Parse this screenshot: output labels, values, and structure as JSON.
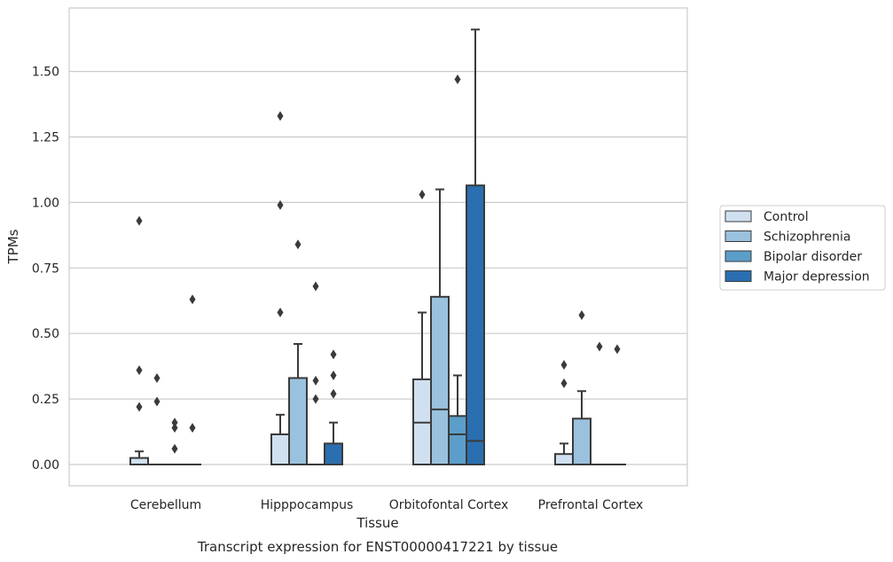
{
  "chart_data": {
    "type": "box",
    "caption": "Transcript expression for ENST00000417221 by tissue",
    "xlabel": "Tissue",
    "ylabel": "TPMs",
    "ylim": [
      -0.08,
      1.75
    ],
    "yticks": [
      0.0,
      0.25,
      0.5,
      0.75,
      1.0,
      1.25,
      1.5
    ],
    "ytick_labels": [
      "0.00",
      "0.25",
      "0.50",
      "0.75",
      "1.00",
      "1.25",
      "1.50"
    ],
    "grid": "horizontal",
    "legend_position": "right",
    "categories": [
      "Cerebellum",
      "Hipppocampus",
      "Orbitofontal Cortex",
      "Prefrontal Cortex"
    ],
    "series": [
      {
        "name": "Control",
        "color": "#d0e0f0",
        "boxes": [
          {
            "q1": 0.0,
            "median": 0.0,
            "q3": 0.025,
            "whisker_low": 0.0,
            "whisker_high": 0.05,
            "outliers": [
              0.93,
              0.36,
              0.22
            ]
          },
          {
            "q1": 0.0,
            "median": 0.0,
            "q3": 0.115,
            "whisker_low": 0.0,
            "whisker_high": 0.19,
            "outliers": [
              1.33,
              0.99,
              0.58
            ]
          },
          {
            "q1": 0.0,
            "median": 0.16,
            "q3": 0.325,
            "whisker_low": 0.0,
            "whisker_high": 0.58,
            "outliers": [
              1.03
            ]
          },
          {
            "q1": 0.0,
            "median": 0.0,
            "q3": 0.04,
            "whisker_low": 0.0,
            "whisker_high": 0.08,
            "outliers": [
              0.38,
              0.31
            ]
          }
        ]
      },
      {
        "name": "Schizophrenia",
        "color": "#9ac1dd",
        "boxes": [
          {
            "q1": 0.0,
            "median": 0.0,
            "q3": 0.0,
            "whisker_low": 0.0,
            "whisker_high": 0.0,
            "outliers": [
              0.33,
              0.24
            ]
          },
          {
            "q1": 0.0,
            "median": 0.0,
            "q3": 0.33,
            "whisker_low": 0.0,
            "whisker_high": 0.46,
            "outliers": [
              0.84
            ]
          },
          {
            "q1": 0.0,
            "median": 0.21,
            "q3": 0.64,
            "whisker_low": 0.0,
            "whisker_high": 1.05,
            "outliers": []
          },
          {
            "q1": 0.0,
            "median": 0.0,
            "q3": 0.175,
            "whisker_low": 0.0,
            "whisker_high": 0.28,
            "outliers": [
              0.57
            ]
          }
        ]
      },
      {
        "name": "Bipolar disorder",
        "color": "#5b9ec9",
        "boxes": [
          {
            "q1": 0.0,
            "median": 0.0,
            "q3": 0.0,
            "whisker_low": 0.0,
            "whisker_high": 0.0,
            "outliers": [
              0.16,
              0.14,
              0.06
            ]
          },
          {
            "q1": 0.0,
            "median": 0.0,
            "q3": 0.0,
            "whisker_low": 0.0,
            "whisker_high": 0.0,
            "outliers": [
              0.68,
              0.32,
              0.25
            ]
          },
          {
            "q1": 0.0,
            "median": 0.115,
            "q3": 0.185,
            "whisker_low": 0.0,
            "whisker_high": 0.34,
            "outliers": [
              1.47
            ]
          },
          {
            "q1": 0.0,
            "median": 0.0,
            "q3": 0.0,
            "whisker_low": 0.0,
            "whisker_high": 0.0,
            "outliers": [
              0.45
            ]
          }
        ]
      },
      {
        "name": "Major depression",
        "color": "#2a6fb0",
        "boxes": [
          {
            "q1": 0.0,
            "median": 0.0,
            "q3": 0.0,
            "whisker_low": 0.0,
            "whisker_high": 0.0,
            "outliers": [
              0.63,
              0.14
            ]
          },
          {
            "q1": 0.0,
            "median": 0.0,
            "q3": 0.08,
            "whisker_low": 0.0,
            "whisker_high": 0.16,
            "outliers": [
              0.42,
              0.34,
              0.27
            ]
          },
          {
            "q1": 0.0,
            "median": 0.09,
            "q3": 1.065,
            "whisker_low": 0.0,
            "whisker_high": 1.66,
            "outliers": []
          },
          {
            "q1": 0.0,
            "median": 0.0,
            "q3": 0.0,
            "whisker_low": 0.0,
            "whisker_high": 0.0,
            "outliers": [
              0.44
            ]
          }
        ]
      }
    ]
  }
}
